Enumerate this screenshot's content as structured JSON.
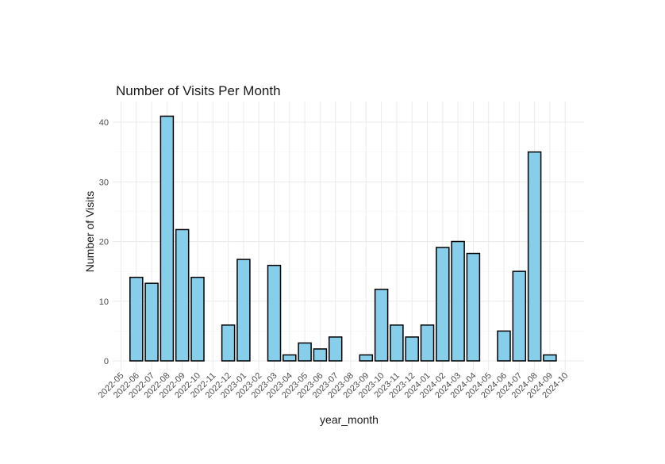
{
  "chart_data": {
    "type": "bar",
    "title": "Number of Visits Per Month",
    "xlabel": "year_month",
    "ylabel": "Number of Visits",
    "ylim": [
      0,
      43
    ],
    "yticks": [
      0,
      10,
      20,
      30,
      40
    ],
    "grid": true,
    "legend": "none",
    "colors": {
      "bar_fill": "#87ceeb",
      "bar_stroke": "#000000"
    },
    "categories": [
      "2022-05",
      "2022-06",
      "2022-07",
      "2022-08",
      "2022-09",
      "2022-10",
      "2022-11",
      "2022-12",
      "2023-01",
      "2023-02",
      "2023-03",
      "2023-04",
      "2023-05",
      "2023-06",
      "2023-07",
      "2023-08",
      "2023-09",
      "2023-10",
      "2023-11",
      "2023-12",
      "2024-01",
      "2024-02",
      "2024-03",
      "2024-04",
      "2024-05",
      "2024-06",
      "2024-07",
      "2024-08",
      "2024-09",
      "2024-10"
    ],
    "values": [
      0,
      14,
      13,
      41,
      22,
      14,
      0,
      6,
      17,
      0,
      16,
      1,
      3,
      2,
      4,
      0,
      1,
      12,
      6,
      4,
      6,
      19,
      20,
      18,
      0,
      5,
      15,
      35,
      1,
      0
    ]
  }
}
